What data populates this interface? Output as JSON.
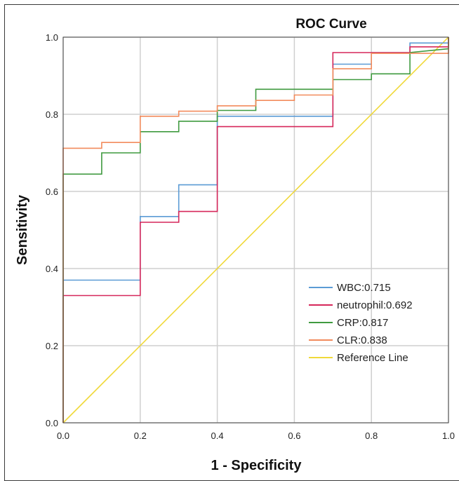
{
  "chart_data": {
    "type": "line",
    "title": "ROC Curve",
    "xlabel": "1 - Specificity",
    "ylabel": "Sensitivity",
    "xlim": [
      0,
      1
    ],
    "ylim": [
      0,
      1
    ],
    "xticks": [
      "0.0",
      "0.2",
      "0.4",
      "0.6",
      "0.8",
      "1.0"
    ],
    "yticks": [
      "0.0",
      "0.2",
      "0.4",
      "0.6",
      "0.8",
      "1.0"
    ],
    "grid": true,
    "legend_position": "bottom-right",
    "series": [
      {
        "name": "WBC:0.715",
        "color": "#5b9bd5",
        "points": [
          [
            0,
            0
          ],
          [
            0,
            0.37
          ],
          [
            0.2,
            0.37
          ],
          [
            0.2,
            0.535
          ],
          [
            0.3,
            0.535
          ],
          [
            0.3,
            0.617
          ],
          [
            0.4,
            0.617
          ],
          [
            0.4,
            0.795
          ],
          [
            0.7,
            0.795
          ],
          [
            0.7,
            0.93
          ],
          [
            0.8,
            0.93
          ],
          [
            0.8,
            0.96
          ],
          [
            0.9,
            0.96
          ],
          [
            0.9,
            0.985
          ],
          [
            1,
            0.985
          ],
          [
            1,
            1
          ]
        ]
      },
      {
        "name": "neutrophil:0.692",
        "color": "#d6275a",
        "points": [
          [
            0,
            0
          ],
          [
            0,
            0.33
          ],
          [
            0.2,
            0.33
          ],
          [
            0.2,
            0.52
          ],
          [
            0.3,
            0.52
          ],
          [
            0.3,
            0.548
          ],
          [
            0.4,
            0.548
          ],
          [
            0.4,
            0.768
          ],
          [
            0.7,
            0.768
          ],
          [
            0.7,
            0.96
          ],
          [
            0.9,
            0.96
          ],
          [
            0.9,
            0.975
          ],
          [
            1,
            0.975
          ],
          [
            1,
            1
          ]
        ]
      },
      {
        "name": "CRP:0.817",
        "color": "#3f9a3f",
        "points": [
          [
            0,
            0
          ],
          [
            0,
            0.645
          ],
          [
            0.1,
            0.645
          ],
          [
            0.1,
            0.7
          ],
          [
            0.2,
            0.7
          ],
          [
            0.2,
            0.755
          ],
          [
            0.3,
            0.755
          ],
          [
            0.3,
            0.782
          ],
          [
            0.4,
            0.782
          ],
          [
            0.4,
            0.81
          ],
          [
            0.5,
            0.81
          ],
          [
            0.5,
            0.865
          ],
          [
            0.7,
            0.865
          ],
          [
            0.7,
            0.89
          ],
          [
            0.8,
            0.89
          ],
          [
            0.8,
            0.905
          ],
          [
            0.9,
            0.905
          ],
          [
            0.9,
            0.96
          ],
          [
            1,
            0.97
          ],
          [
            1,
            1
          ]
        ]
      },
      {
        "name": "CLR:0.838",
        "color": "#f28b5c",
        "points": [
          [
            0,
            0
          ],
          [
            0,
            0.712
          ],
          [
            0.1,
            0.712
          ],
          [
            0.1,
            0.727
          ],
          [
            0.2,
            0.727
          ],
          [
            0.2,
            0.795
          ],
          [
            0.3,
            0.795
          ],
          [
            0.3,
            0.808
          ],
          [
            0.4,
            0.808
          ],
          [
            0.4,
            0.822
          ],
          [
            0.5,
            0.822
          ],
          [
            0.5,
            0.836
          ],
          [
            0.6,
            0.836
          ],
          [
            0.6,
            0.85
          ],
          [
            0.7,
            0.85
          ],
          [
            0.7,
            0.918
          ],
          [
            0.8,
            0.918
          ],
          [
            0.8,
            0.958
          ],
          [
            1,
            0.958
          ],
          [
            1,
            1
          ]
        ]
      },
      {
        "name": "Reference Line",
        "color": "#f0d93a",
        "points": [
          [
            0,
            0
          ],
          [
            1,
            1
          ]
        ]
      }
    ]
  }
}
